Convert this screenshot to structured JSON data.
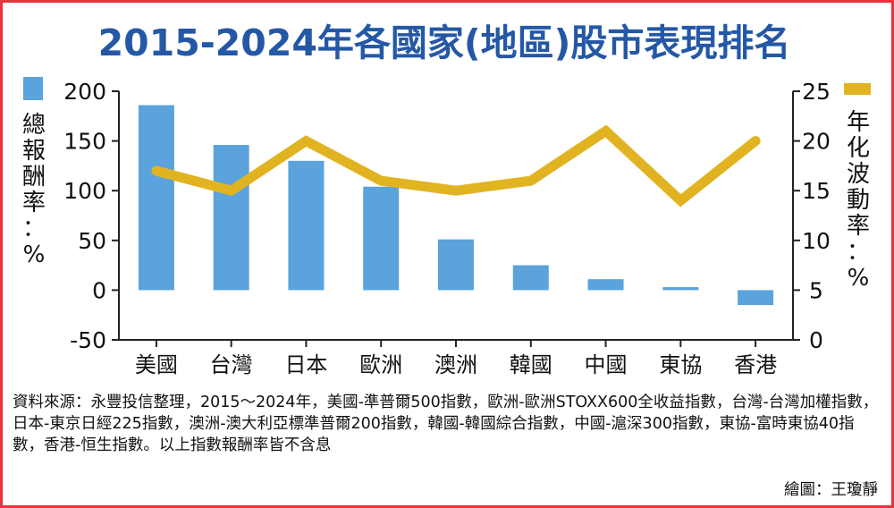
{
  "title": "2015-2024年各國家(地區)股市表現排名",
  "source_text": "資料來源：永豐投信整理，2015～2024年，美國-準普爾500指數，歐洲-歐洲STOXX600全收益指數，台灣-台灣加權指數，日本-東京日經225指數，澳洲-澳大利亞標準普爾200指數，韓國-韓國綜合指數，中國-滬深300指數，東協-富時東協40指數，香港-恒生指數。以上指數報酬率皆不含息",
  "credit": "繪圖：王瓊靜",
  "chart_data": {
    "type": "bar",
    "categories": [
      "美國",
      "台灣",
      "日本",
      "歐洲",
      "澳洲",
      "韓國",
      "中國",
      "東協",
      "香港"
    ],
    "series": [
      {
        "name": "總報酬率：%",
        "type": "bar",
        "axis": "left",
        "color": "#5aa3dc",
        "values": [
          186,
          146,
          130,
          104,
          51,
          25,
          11,
          3,
          -15
        ]
      },
      {
        "name": "年化波動率：%",
        "type": "line",
        "axis": "right",
        "color": "#e2b321",
        "values": [
          17,
          15,
          20,
          16,
          15,
          16,
          21,
          14,
          20
        ]
      }
    ],
    "ylabel": "總報酬率：%",
    "y2label": "年化波動率：%",
    "ylim": [
      -50,
      200
    ],
    "yticks": [
      200,
      150,
      100,
      50,
      0,
      -50
    ],
    "y2lim": [
      0,
      25
    ],
    "y2ticks": [
      25,
      20,
      15,
      10,
      5,
      0
    ],
    "grid": false,
    "legend": "top-corners"
  }
}
